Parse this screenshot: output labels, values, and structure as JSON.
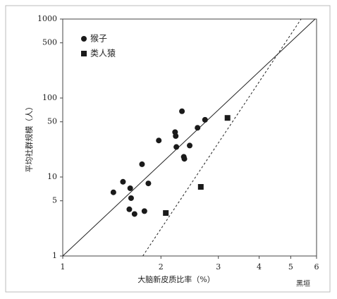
{
  "chart_data": {
    "type": "scatter",
    "x_label": "大脑新皮质比率（%）",
    "y_label": "平均社群规模（人）",
    "log_x": true,
    "log_y": true,
    "xlim": [
      1,
      6
    ],
    "ylim": [
      1,
      1000
    ],
    "xticks": [
      1,
      2,
      3,
      4,
      5,
      6
    ],
    "yticks": [
      1,
      5,
      10,
      50,
      100,
      500,
      1000
    ],
    "legend_position": "upper left",
    "series": [
      {
        "name": "猴子",
        "marker": "circle",
        "color": "#1a1a1a",
        "x": [
          1.43,
          1.53,
          1.61,
          1.62,
          1.6,
          1.66,
          1.78,
          1.75,
          1.83,
          1.97,
          2.21,
          2.22,
          2.23,
          2.35,
          2.36,
          2.32,
          2.45,
          2.59,
          2.73
        ],
        "values": [
          6.4,
          8.7,
          7.2,
          5.4,
          3.9,
          3.4,
          3.7,
          14.5,
          8.3,
          29,
          37,
          33,
          24,
          18,
          17,
          68,
          25,
          42,
          53
        ]
      },
      {
        "name": "类人猿",
        "marker": "square",
        "color": "#1a1a1a",
        "x": [
          2.07,
          2.65,
          3.2
        ],
        "values": [
          3.5,
          7.5,
          56
        ]
      }
    ],
    "fit_lines": [
      {
        "style": "solid",
        "x": [
          1,
          5.94
        ],
        "values": [
          1,
          1000
        ]
      },
      {
        "style": "dashed",
        "x": [
          1.76,
          5.38
        ],
        "values": [
          1,
          1000
        ]
      }
    ],
    "watermark": "黑垣"
  }
}
